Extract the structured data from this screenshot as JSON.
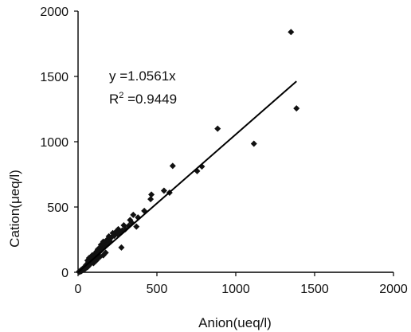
{
  "chart_data": {
    "type": "scatter",
    "title": "",
    "xlabel": "Anion(ueq/l)",
    "ylabel": "Cation(μeq/l)",
    "xlim": [
      0,
      2000
    ],
    "ylim": [
      0,
      2000
    ],
    "xticks": [
      "0",
      "500",
      "1000",
      "1500",
      "2000"
    ],
    "yticks": [
      "0",
      "500",
      "1000",
      "1500",
      "2000"
    ],
    "grid": false,
    "annotations": {
      "equation": "y =1.0561x",
      "r2_prefix": "R",
      "r2_sup": "2",
      "r2_value": " =0.9449"
    },
    "fit": {
      "slope": 1.0561,
      "x_range": [
        0,
        1385
      ]
    },
    "points": [
      [
        1350,
        1840
      ],
      [
        1385,
        1255
      ],
      [
        1115,
        985
      ],
      [
        885,
        1100
      ],
      [
        785,
        810
      ],
      [
        755,
        775
      ],
      [
        600,
        815
      ],
      [
        580,
        610
      ],
      [
        545,
        625
      ],
      [
        465,
        595
      ],
      [
        460,
        560
      ],
      [
        420,
        470
      ],
      [
        380,
        420
      ],
      [
        370,
        350
      ],
      [
        350,
        440
      ],
      [
        340,
        380
      ],
      [
        330,
        400
      ],
      [
        320,
        355
      ],
      [
        300,
        330
      ],
      [
        290,
        360
      ],
      [
        280,
        320
      ],
      [
        275,
        190
      ],
      [
        265,
        300
      ],
      [
        255,
        330
      ],
      [
        250,
        295
      ],
      [
        240,
        310
      ],
      [
        230,
        280
      ],
      [
        220,
        300
      ],
      [
        210,
        265
      ],
      [
        200,
        240
      ],
      [
        195,
        275
      ],
      [
        190,
        250
      ],
      [
        185,
        215
      ],
      [
        180,
        245
      ],
      [
        170,
        220
      ],
      [
        165,
        195
      ],
      [
        160,
        235
      ],
      [
        155,
        200
      ],
      [
        150,
        175
      ],
      [
        145,
        210
      ],
      [
        140,
        160
      ],
      [
        135,
        185
      ],
      [
        130,
        150
      ],
      [
        125,
        175
      ],
      [
        120,
        135
      ],
      [
        118,
        160
      ],
      [
        112,
        120
      ],
      [
        108,
        145
      ],
      [
        104,
        105
      ],
      [
        100,
        130
      ],
      [
        96,
        95
      ],
      [
        92,
        118
      ],
      [
        88,
        80
      ],
      [
        85,
        105
      ],
      [
        80,
        70
      ],
      [
        78,
        95
      ],
      [
        75,
        60
      ],
      [
        72,
        85
      ],
      [
        68,
        50
      ],
      [
        65,
        75
      ],
      [
        60,
        40
      ],
      [
        58,
        65
      ],
      [
        55,
        45
      ],
      [
        50,
        55
      ],
      [
        48,
        30
      ],
      [
        45,
        40
      ],
      [
        40,
        25
      ],
      [
        38,
        35
      ],
      [
        35,
        20
      ],
      [
        30,
        28
      ],
      [
        28,
        15
      ],
      [
        25,
        22
      ],
      [
        22,
        10
      ],
      [
        20,
        18
      ],
      [
        18,
        8
      ],
      [
        15,
        12
      ],
      [
        12,
        5
      ],
      [
        10,
        8
      ],
      [
        8,
        3
      ],
      [
        5,
        4
      ],
      [
        130,
        110
      ],
      [
        115,
        90
      ],
      [
        98,
        70
      ],
      [
        90,
        130
      ],
      [
        70,
        110
      ],
      [
        60,
        90
      ],
      [
        110,
        85
      ],
      [
        140,
        120
      ],
      [
        160,
        130
      ],
      [
        175,
        150
      ]
    ]
  }
}
